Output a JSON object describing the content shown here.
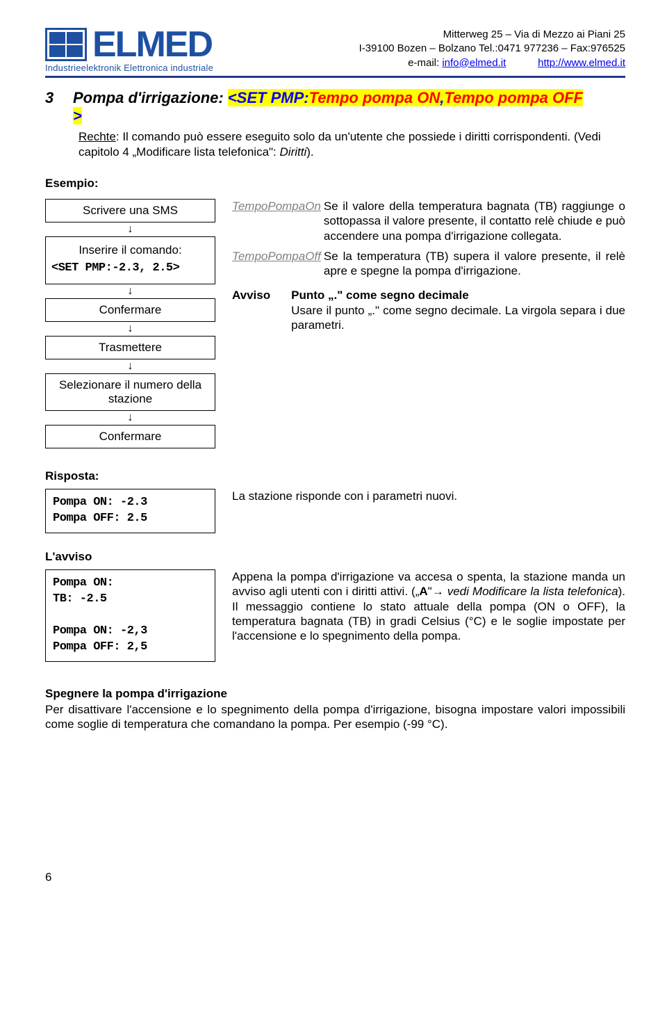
{
  "header": {
    "logo_text": "ELMED",
    "logo_sub": "Industrieelektronik  Elettronica industriale",
    "addr_line1": "Mitterweg 25 – Via di Mezzo ai Piani 25",
    "addr_line2": "I-39100 Bozen – Bolzano Tel.:0471 977236 – Fax:976525",
    "email_label": "e-mail: ",
    "email": "info@elmed.it",
    "url": "http://www.elmed.it"
  },
  "section": {
    "num": "3",
    "title_pre": "Pompa d'irrigazione: ",
    "title_cmd_open": "<SET PMP:",
    "title_arg1": "Tempo pompa ON",
    "title_comma": ",",
    "title_arg2": "Tempo pompa OFF",
    "title_cmd_close": ">"
  },
  "rechte": {
    "label": "Rechte",
    "text": ": Il comando può essere eseguito solo da un'utente che possiede i diritti corrispondenti. (Vedi capitolo 4 „Modificare lista telefonica\": ",
    "diritti": "Diritti",
    "close": ")."
  },
  "esempio": {
    "label": "Esempio:",
    "steps": {
      "s1": "Scrivere una SMS",
      "s2a": "Inserire il comando:",
      "s2b": "<SET PMP:-2.3, 2.5>",
      "s3": "Confermare",
      "s4": "Trasmettere",
      "s5": "Selezionare il numero della stazione",
      "s6": "Confermare"
    },
    "desc": {
      "k1": "TempoPompaOn",
      "t1": "Se il valore della temperatura bagnata (TB) raggiunge o sottopassa il valore presente, il contatto relè chiude e può accendere una pompa d'irrigazione collegata.",
      "k2": "TempoPompaOff",
      "t2": "Se la temperatura (TB) supera il valore presente, il relè apre e spegne la pompa d'irrigazione.",
      "avviso_label": "Avviso",
      "avviso_bold": "Punto „.\" come segno decimale",
      "avviso_text": "Usare il punto „.\" come segno decimale. La virgola separa i due parametri."
    }
  },
  "risposta": {
    "label": "Risposta:",
    "code": "Pompa ON: -2.3\nPompa OFF: 2.5",
    "text": "La stazione risponde con i parametri nuovi."
  },
  "lavviso": {
    "label": "L'avviso",
    "code": "Pompa ON:\nTB: -2.5\n\nPompa ON: -2,3\nPompa OFF: 2,5",
    "text1": "Appena la pompa d'irrigazione va accesa o spenta, la stazione manda un avviso agli utenti con i diritti attivi. („",
    "text_bold1": "A",
    "text2": "\"→ ",
    "text_italic": "vedi Modificare la lista telefonica",
    "text3": "). Il messaggio contiene lo stato attuale della pompa (ON o OFF), la temperatura bagnata (TB) in gradi Celsius (°C) e le soglie impostate per l'accensione e lo spegnimento della pompa."
  },
  "spegnere": {
    "label": "Spegnere la pompa d'irrigazione",
    "text": "Per disattivare l'accensione e lo spegnimento della pompa d'irrigazione, bisogna impostare valori impossibili come soglie di temperatura che comandano la pompa. Per esempio (-99 °C)."
  },
  "page_num": "6"
}
